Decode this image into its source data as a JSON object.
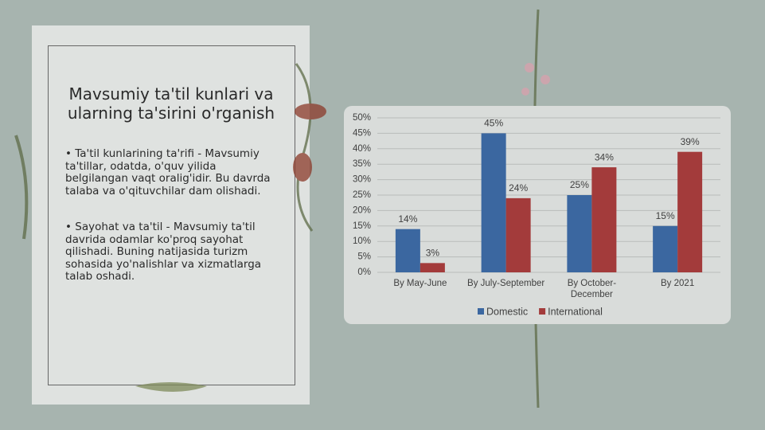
{
  "slide": {
    "title": "Mavsumiy ta'til kunlari va ularning ta'sirini o'rganish",
    "bullets": [
      "• Ta'til kunlarining ta'rifi - Mavsumiy ta'tillar, odatda, o'quv yilida belgilangan vaqt oralig'idir. Bu davrda talaba va o'qituvchilar dam olishadi.",
      "• Sayohat va ta'til - Mavsumiy ta'til davrida odamlar ko'proq sayohat qilishadi. Buning natijasida turizm sohasida yo'nalishlar va xizmatlarga talab oshadi."
    ]
  },
  "chart_data": {
    "type": "bar",
    "categories": [
      "By May-June",
      "By July-September",
      "By October-December",
      "By 2021"
    ],
    "series": [
      {
        "name": "Domestic",
        "color": "#3b67a0",
        "values": [
          14,
          45,
          25,
          15
        ],
        "value_labels": [
          "14%",
          "45%",
          "25%",
          "15%"
        ]
      },
      {
        "name": "International",
        "color": "#a33b3b",
        "values": [
          3,
          24,
          34,
          39
        ],
        "value_labels": [
          "3%",
          "24%",
          "34%",
          "39%"
        ]
      }
    ],
    "ylim": [
      0,
      50
    ],
    "yticks": [
      {
        "value": 0,
        "label": "0%"
      },
      {
        "value": 5,
        "label": "5%"
      },
      {
        "value": 10,
        "label": "10%"
      },
      {
        "value": 15,
        "label": "15%"
      },
      {
        "value": 20,
        "label": "20%"
      },
      {
        "value": 25,
        "label": "25%"
      },
      {
        "value": 30,
        "label": "30%"
      },
      {
        "value": 35,
        "label": "35%"
      },
      {
        "value": 40,
        "label": "40%"
      },
      {
        "value": 45,
        "label": "45%"
      },
      {
        "value": 50,
        "label": "50%"
      }
    ],
    "grid": true,
    "legend": "bottom"
  }
}
